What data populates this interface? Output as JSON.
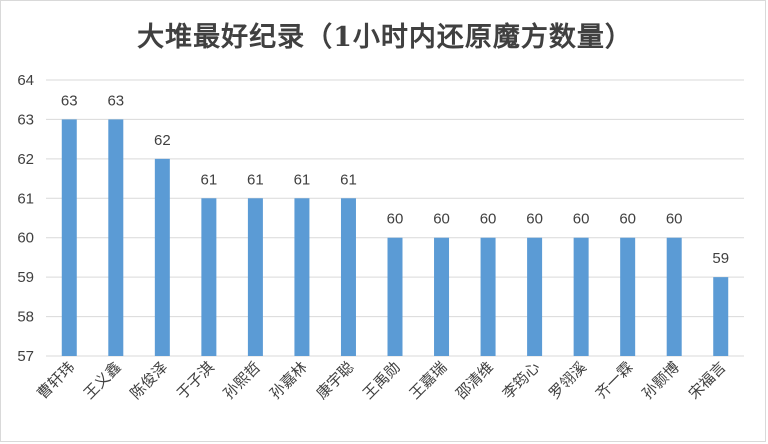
{
  "chart_data": {
    "type": "bar",
    "title": "大堆最好纪录（1小时内还原魔方数量）",
    "xlabel": "",
    "ylabel": "",
    "ylim": [
      57,
      64
    ],
    "yticks": [
      57,
      58,
      59,
      60,
      61,
      62,
      63,
      64
    ],
    "grid": true,
    "bar_color": "#5b9bd5",
    "categories": [
      "曹轩玮",
      "王义鑫",
      "陈俊泽",
      "于子淇",
      "孙熙哲",
      "孙嘉林",
      "康宇聪",
      "王禹勋",
      "王嘉瑞",
      "邵清维",
      "李筠心",
      "罗翎溪",
      "齐一霖",
      "孙颢博",
      "宋福言"
    ],
    "values": [
      63,
      63,
      62,
      61,
      61,
      61,
      61,
      60,
      60,
      60,
      60,
      60,
      60,
      60,
      59
    ]
  }
}
